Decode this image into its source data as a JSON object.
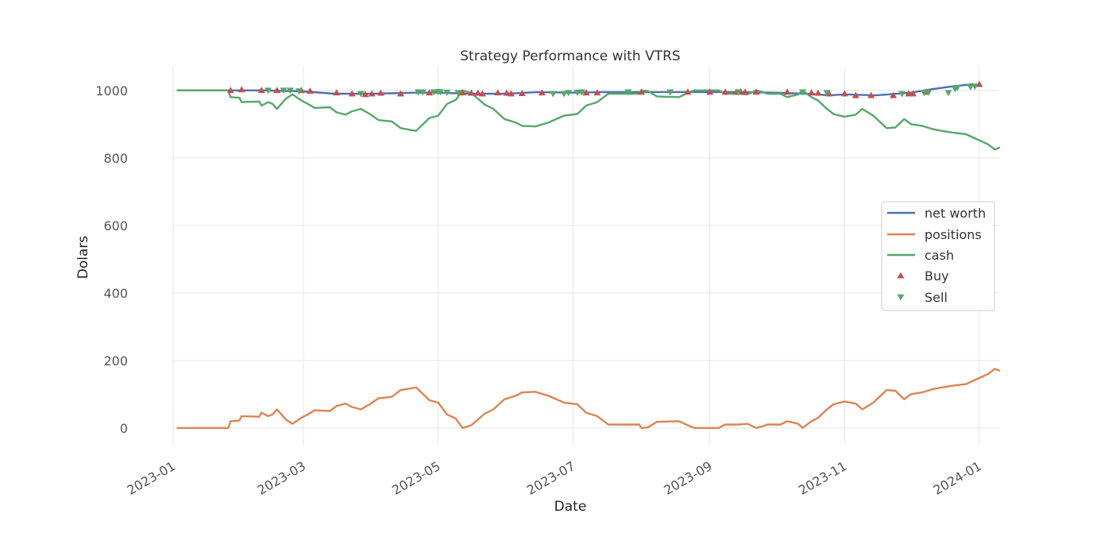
{
  "chart_data": {
    "type": "line",
    "title": "Strategy Performance with VTRS",
    "xlabel": "Date",
    "ylabel": "Dolars",
    "xlim": [
      "2023-01-01",
      "2024-01-10"
    ],
    "ylim": [
      -50,
      1070
    ],
    "yticks": [
      0,
      200,
      400,
      600,
      800,
      1000
    ],
    "xticks": [
      "2023-01",
      "2023-03",
      "2023-05",
      "2023-07",
      "2023-09",
      "2023-11",
      "2024-01"
    ],
    "grid": true,
    "legend_position": "center-right",
    "series": [
      {
        "name": "net worth",
        "color": "#4c72b0",
        "points": [
          [
            "2023-01-03",
            1000
          ],
          [
            "2023-01-25",
            1000
          ],
          [
            "2023-02-10",
            1000
          ],
          [
            "2023-03-01",
            997
          ],
          [
            "2023-03-15",
            990
          ],
          [
            "2023-04-01",
            990
          ],
          [
            "2023-04-20",
            993
          ],
          [
            "2023-05-01",
            993
          ],
          [
            "2023-05-15",
            990
          ],
          [
            "2023-06-01",
            990
          ],
          [
            "2023-06-15",
            995
          ],
          [
            "2023-07-01",
            993
          ],
          [
            "2023-07-15",
            995
          ],
          [
            "2023-08-01",
            995
          ],
          [
            "2023-08-15",
            995
          ],
          [
            "2023-09-01",
            995
          ],
          [
            "2023-09-15",
            995
          ],
          [
            "2023-10-01",
            993
          ],
          [
            "2023-10-15",
            990
          ],
          [
            "2023-10-25",
            985
          ],
          [
            "2023-11-01",
            988
          ],
          [
            "2023-11-15",
            985
          ],
          [
            "2023-12-01",
            993
          ],
          [
            "2023-12-10",
            1003
          ],
          [
            "2023-12-20",
            1012
          ],
          [
            "2023-12-29",
            1018
          ]
        ]
      },
      {
        "name": "positions",
        "color": "#dd8452",
        "points": [
          [
            "2023-01-03",
            0
          ],
          [
            "2023-01-26",
            0
          ],
          [
            "2023-01-27",
            20
          ],
          [
            "2023-01-31",
            22
          ],
          [
            "2023-02-01",
            35
          ],
          [
            "2023-02-09",
            33
          ],
          [
            "2023-02-10",
            45
          ],
          [
            "2023-02-13",
            35
          ],
          [
            "2023-02-15",
            40
          ],
          [
            "2023-02-17",
            55
          ],
          [
            "2023-02-21",
            25
          ],
          [
            "2023-02-24",
            12
          ],
          [
            "2023-02-28",
            30
          ],
          [
            "2023-03-03",
            40
          ],
          [
            "2023-03-06",
            52
          ],
          [
            "2023-03-13",
            50
          ],
          [
            "2023-03-16",
            65
          ],
          [
            "2023-03-20",
            72
          ],
          [
            "2023-03-23",
            62
          ],
          [
            "2023-03-27",
            55
          ],
          [
            "2023-03-31",
            70
          ],
          [
            "2023-04-04",
            88
          ],
          [
            "2023-04-10",
            92
          ],
          [
            "2023-04-14",
            112
          ],
          [
            "2023-04-21",
            120
          ],
          [
            "2023-04-27",
            82
          ],
          [
            "2023-05-01",
            75
          ],
          [
            "2023-05-05",
            40
          ],
          [
            "2023-05-09",
            28
          ],
          [
            "2023-05-12",
            0
          ],
          [
            "2023-05-16",
            8
          ],
          [
            "2023-05-22",
            42
          ],
          [
            "2023-05-26",
            55
          ],
          [
            "2023-05-31",
            85
          ],
          [
            "2023-06-05",
            95
          ],
          [
            "2023-06-08",
            105
          ],
          [
            "2023-06-14",
            107
          ],
          [
            "2023-06-20",
            95
          ],
          [
            "2023-06-27",
            75
          ],
          [
            "2023-07-03",
            70
          ],
          [
            "2023-07-07",
            45
          ],
          [
            "2023-07-12",
            35
          ],
          [
            "2023-07-17",
            10
          ],
          [
            "2023-07-31",
            10
          ],
          [
            "2023-08-01",
            0
          ],
          [
            "2023-08-04",
            2
          ],
          [
            "2023-08-08",
            18
          ],
          [
            "2023-08-18",
            20
          ],
          [
            "2023-08-22",
            8
          ],
          [
            "2023-08-25",
            0
          ],
          [
            "2023-09-05",
            0
          ],
          [
            "2023-09-08",
            10
          ],
          [
            "2023-09-14",
            10
          ],
          [
            "2023-09-18",
            12
          ],
          [
            "2023-09-22",
            0
          ],
          [
            "2023-09-25",
            5
          ],
          [
            "2023-09-27",
            10
          ],
          [
            "2023-10-03",
            10
          ],
          [
            "2023-10-06",
            20
          ],
          [
            "2023-10-11",
            12
          ],
          [
            "2023-10-13",
            0
          ],
          [
            "2023-10-17",
            20
          ],
          [
            "2023-10-20",
            30
          ],
          [
            "2023-10-24",
            55
          ],
          [
            "2023-10-27",
            70
          ],
          [
            "2023-11-01",
            78
          ],
          [
            "2023-11-06",
            72
          ],
          [
            "2023-11-09",
            55
          ],
          [
            "2023-11-14",
            75
          ],
          [
            "2023-11-20",
            112
          ],
          [
            "2023-11-24",
            110
          ],
          [
            "2023-11-28",
            85
          ],
          [
            "2023-12-01",
            100
          ],
          [
            "2023-12-06",
            105
          ],
          [
            "2023-12-11",
            115
          ],
          [
            "2023-12-15",
            120
          ],
          [
            "2023-12-20",
            125
          ],
          [
            "2023-12-26",
            130
          ],
          [
            "2023-12-31",
            145
          ],
          [
            "2024-01-05",
            160
          ],
          [
            "2024-01-08",
            175
          ],
          [
            "2024-01-10",
            170
          ]
        ]
      },
      {
        "name": "cash",
        "color": "#55a868",
        "points": [
          [
            "2023-01-03",
            1000
          ],
          [
            "2023-01-26",
            1000
          ],
          [
            "2023-01-27",
            980
          ],
          [
            "2023-01-31",
            978
          ],
          [
            "2023-02-01",
            965
          ],
          [
            "2023-02-09",
            967
          ],
          [
            "2023-02-10",
            955
          ],
          [
            "2023-02-13",
            965
          ],
          [
            "2023-02-15",
            960
          ],
          [
            "2023-02-17",
            945
          ],
          [
            "2023-02-21",
            975
          ],
          [
            "2023-02-24",
            988
          ],
          [
            "2023-02-28",
            970
          ],
          [
            "2023-03-03",
            960
          ],
          [
            "2023-03-06",
            948
          ],
          [
            "2023-03-13",
            950
          ],
          [
            "2023-03-16",
            935
          ],
          [
            "2023-03-20",
            928
          ],
          [
            "2023-03-23",
            938
          ],
          [
            "2023-03-27",
            945
          ],
          [
            "2023-03-31",
            930
          ],
          [
            "2023-04-04",
            912
          ],
          [
            "2023-04-10",
            908
          ],
          [
            "2023-04-14",
            888
          ],
          [
            "2023-04-21",
            880
          ],
          [
            "2023-04-27",
            918
          ],
          [
            "2023-05-01",
            925
          ],
          [
            "2023-05-05",
            960
          ],
          [
            "2023-05-09",
            972
          ],
          [
            "2023-05-12",
            1000
          ],
          [
            "2023-05-16",
            992
          ],
          [
            "2023-05-22",
            958
          ],
          [
            "2023-05-26",
            945
          ],
          [
            "2023-05-31",
            915
          ],
          [
            "2023-06-05",
            905
          ],
          [
            "2023-06-08",
            895
          ],
          [
            "2023-06-14",
            893
          ],
          [
            "2023-06-20",
            905
          ],
          [
            "2023-06-27",
            925
          ],
          [
            "2023-07-03",
            930
          ],
          [
            "2023-07-07",
            955
          ],
          [
            "2023-07-12",
            965
          ],
          [
            "2023-07-17",
            990
          ],
          [
            "2023-07-31",
            990
          ],
          [
            "2023-08-01",
            1000
          ],
          [
            "2023-08-04",
            998
          ],
          [
            "2023-08-08",
            982
          ],
          [
            "2023-08-18",
            980
          ],
          [
            "2023-08-22",
            992
          ],
          [
            "2023-08-25",
            1000
          ],
          [
            "2023-09-05",
            1000
          ],
          [
            "2023-09-08",
            990
          ],
          [
            "2023-09-14",
            990
          ],
          [
            "2023-09-18",
            988
          ],
          [
            "2023-09-22",
            1000
          ],
          [
            "2023-09-25",
            995
          ],
          [
            "2023-09-27",
            990
          ],
          [
            "2023-10-03",
            990
          ],
          [
            "2023-10-06",
            980
          ],
          [
            "2023-10-11",
            988
          ],
          [
            "2023-10-13",
            1000
          ],
          [
            "2023-10-17",
            980
          ],
          [
            "2023-10-20",
            970
          ],
          [
            "2023-10-24",
            945
          ],
          [
            "2023-10-27",
            930
          ],
          [
            "2023-11-01",
            922
          ],
          [
            "2023-11-06",
            928
          ],
          [
            "2023-11-09",
            945
          ],
          [
            "2023-11-14",
            925
          ],
          [
            "2023-11-20",
            888
          ],
          [
            "2023-11-24",
            890
          ],
          [
            "2023-11-28",
            915
          ],
          [
            "2023-12-01",
            900
          ],
          [
            "2023-12-06",
            895
          ],
          [
            "2023-12-11",
            885
          ],
          [
            "2023-12-15",
            880
          ],
          [
            "2023-12-20",
            875
          ],
          [
            "2023-12-26",
            870
          ],
          [
            "2023-12-31",
            855
          ],
          [
            "2024-01-05",
            840
          ],
          [
            "2024-01-08",
            825
          ],
          [
            "2024-01-10",
            830
          ]
        ]
      }
    ],
    "markers": [
      {
        "name": "Buy",
        "color": "#c44e52",
        "shape": "triangle-up",
        "points": [
          [
            "2023-01-27",
            1000
          ],
          [
            "2023-02-01",
            1002
          ],
          [
            "2023-02-10",
            1000
          ],
          [
            "2023-02-17",
            1000
          ],
          [
            "2023-02-28",
            1000
          ],
          [
            "2023-03-04",
            998
          ],
          [
            "2023-03-16",
            993
          ],
          [
            "2023-03-23",
            990
          ],
          [
            "2023-03-29",
            988
          ],
          [
            "2023-04-01",
            990
          ],
          [
            "2023-04-05",
            992
          ],
          [
            "2023-04-14",
            990
          ],
          [
            "2023-04-27",
            993
          ],
          [
            "2023-05-12",
            993
          ],
          [
            "2023-05-16",
            992
          ],
          [
            "2023-05-19",
            992
          ],
          [
            "2023-05-21",
            990
          ],
          [
            "2023-05-28",
            993
          ],
          [
            "2023-06-01",
            992
          ],
          [
            "2023-06-03",
            990
          ],
          [
            "2023-06-08",
            991
          ],
          [
            "2023-06-17",
            993
          ],
          [
            "2023-07-07",
            993
          ],
          [
            "2023-07-12",
            993
          ],
          [
            "2023-08-01",
            995
          ],
          [
            "2023-08-22",
            995
          ],
          [
            "2023-09-01",
            995
          ],
          [
            "2023-09-08",
            995
          ],
          [
            "2023-09-13",
            995
          ],
          [
            "2023-09-15",
            996
          ],
          [
            "2023-09-17",
            995
          ],
          [
            "2023-09-22",
            995
          ],
          [
            "2023-10-06",
            995
          ],
          [
            "2023-10-17",
            993
          ],
          [
            "2023-10-20",
            992
          ],
          [
            "2023-10-25",
            990
          ],
          [
            "2023-11-01",
            990
          ],
          [
            "2023-11-06",
            985
          ],
          [
            "2023-11-13",
            985
          ],
          [
            "2023-11-23",
            985
          ],
          [
            "2023-11-30",
            990
          ],
          [
            "2023-12-02",
            990
          ],
          [
            "2023-12-08",
            995
          ],
          [
            "2024-01-01",
            1018
          ]
        ]
      },
      {
        "name": "Sell",
        "color": "#55a868",
        "shape": "triangle-down",
        "points": [
          [
            "2023-02-13",
            1000
          ],
          [
            "2023-02-20",
            1000
          ],
          [
            "2023-02-23",
            1000
          ],
          [
            "2023-02-27",
            998
          ],
          [
            "2023-03-27",
            990
          ],
          [
            "2023-04-22",
            995
          ],
          [
            "2023-04-24",
            995
          ],
          [
            "2023-04-29",
            995
          ],
          [
            "2023-05-01",
            996
          ],
          [
            "2023-05-02",
            995
          ],
          [
            "2023-05-05",
            994
          ],
          [
            "2023-05-10",
            993
          ],
          [
            "2023-06-22",
            990
          ],
          [
            "2023-06-27",
            990
          ],
          [
            "2023-06-29",
            993
          ],
          [
            "2023-07-03",
            994
          ],
          [
            "2023-07-05",
            995
          ],
          [
            "2023-07-26",
            995
          ],
          [
            "2023-08-14",
            995
          ],
          [
            "2023-09-14",
            995
          ],
          [
            "2023-10-13",
            995
          ],
          [
            "2023-10-24",
            993
          ],
          [
            "2023-11-27",
            990
          ],
          [
            "2023-12-07",
            993
          ],
          [
            "2023-12-09",
            994
          ],
          [
            "2023-12-18",
            993
          ],
          [
            "2023-12-21",
            1005
          ],
          [
            "2023-12-22",
            1008
          ],
          [
            "2023-12-28",
            1010
          ],
          [
            "2023-12-30",
            1012
          ]
        ]
      }
    ]
  }
}
